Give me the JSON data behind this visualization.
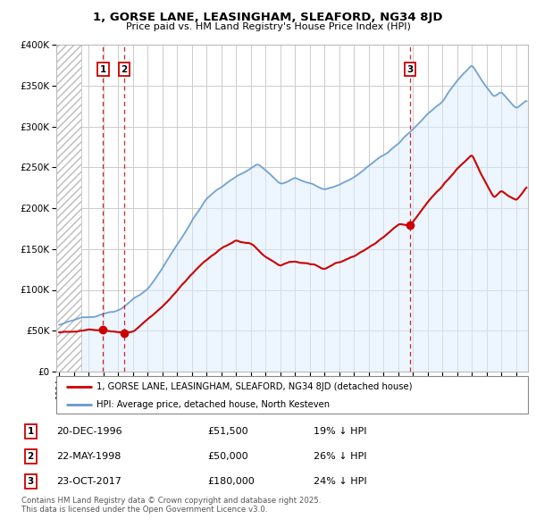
{
  "title_line1": "1, GORSE LANE, LEASINGHAM, SLEAFORD, NG34 8JD",
  "title_line2": "Price paid vs. HM Land Registry's House Price Index (HPI)",
  "property_label": "1, GORSE LANE, LEASINGHAM, SLEAFORD, NG34 8JD (detached house)",
  "hpi_label": "HPI: Average price, detached house, North Kesteven",
  "footer": "Contains HM Land Registry data © Crown copyright and database right 2025.\nThis data is licensed under the Open Government Licence v3.0.",
  "transactions": [
    {
      "num": 1,
      "date": "20-DEC-1996",
      "price": 51500,
      "pct": "19%",
      "direction": "↓",
      "x_year": 1996.97
    },
    {
      "num": 2,
      "date": "22-MAY-1998",
      "price": 50000,
      "pct": "26%",
      "direction": "↓",
      "x_year": 1998.39
    },
    {
      "num": 3,
      "date": "23-OCT-2017",
      "price": 180000,
      "pct": "24%",
      "direction": "↓",
      "x_year": 2017.81
    }
  ],
  "property_color": "#cc0000",
  "hpi_color": "#6699cc",
  "hpi_fill_color": "#ddeeff",
  "vline_color": "#cc0000",
  "marker_box_color": "#cc0000",
  "ylim": [
    0,
    400000
  ],
  "xlim_start": 1993.8,
  "xlim_end": 2025.8,
  "grid_color": "#cccccc",
  "hatch_region_end": 1995.5
}
